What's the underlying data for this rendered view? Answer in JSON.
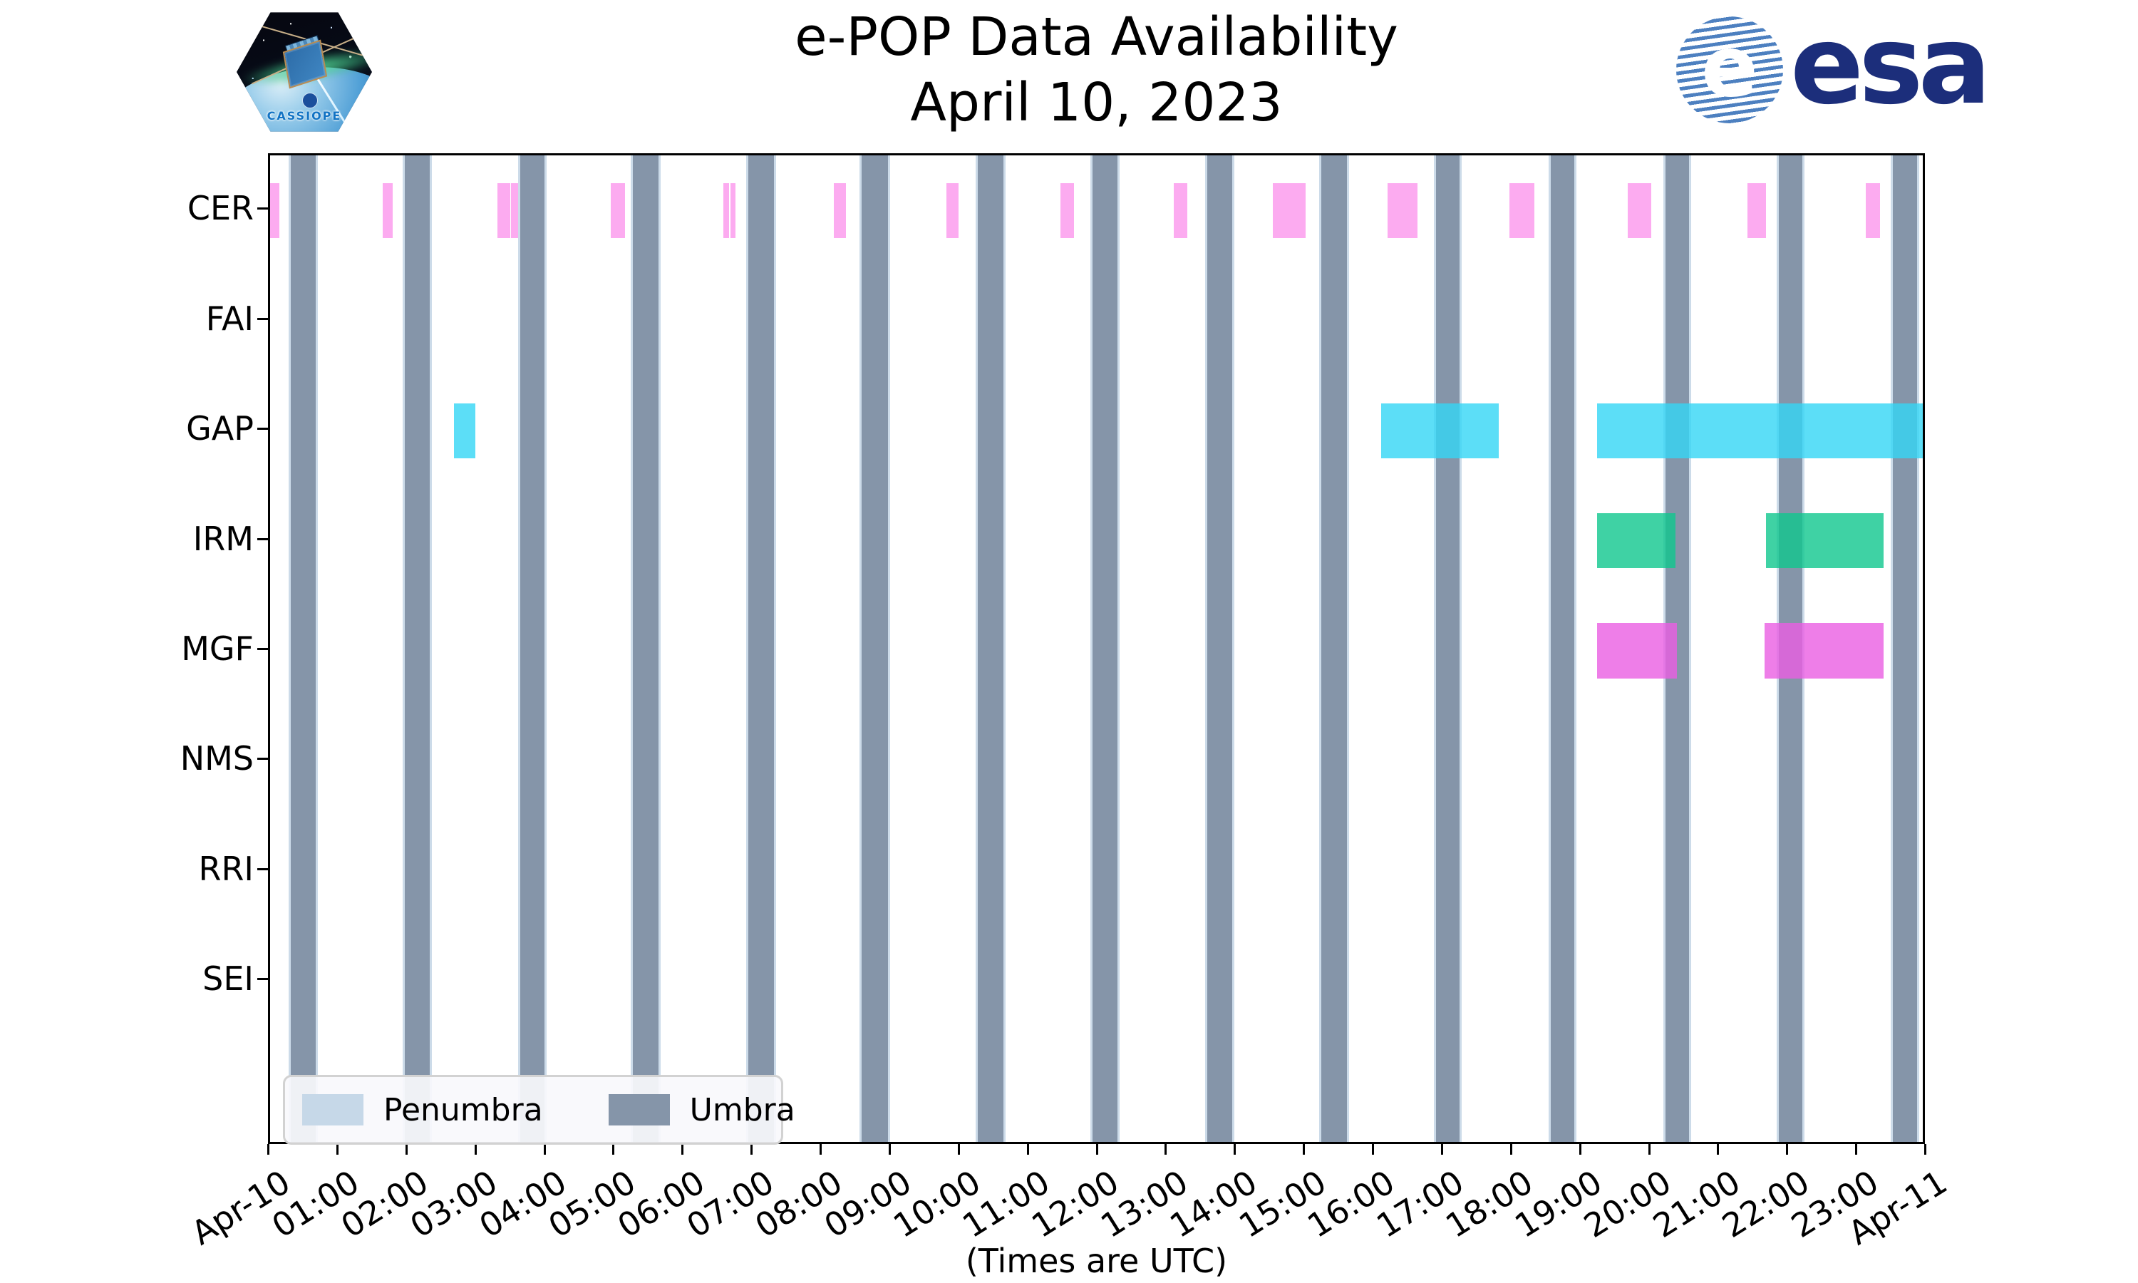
{
  "header": {
    "title_line1": "e-POP Data Availability",
    "title_line2": "April 10, 2023"
  },
  "branding": {
    "patch_text": "CASSIOPE",
    "esa_globe_letter": "e",
    "esa_wordmark": "esa"
  },
  "axes": {
    "xlabel": "(Times are UTC)",
    "x_range_hours": [
      0,
      24
    ],
    "x_ticks": [
      {
        "pos": 0,
        "label": "Apr-10"
      },
      {
        "pos": 1,
        "label": "01:00"
      },
      {
        "pos": 2,
        "label": "02:00"
      },
      {
        "pos": 3,
        "label": "03:00"
      },
      {
        "pos": 4,
        "label": "04:00"
      },
      {
        "pos": 5,
        "label": "05:00"
      },
      {
        "pos": 6,
        "label": "06:00"
      },
      {
        "pos": 7,
        "label": "07:00"
      },
      {
        "pos": 8,
        "label": "08:00"
      },
      {
        "pos": 9,
        "label": "09:00"
      },
      {
        "pos": 10,
        "label": "10:00"
      },
      {
        "pos": 11,
        "label": "11:00"
      },
      {
        "pos": 12,
        "label": "12:00"
      },
      {
        "pos": 13,
        "label": "13:00"
      },
      {
        "pos": 14,
        "label": "14:00"
      },
      {
        "pos": 15,
        "label": "15:00"
      },
      {
        "pos": 16,
        "label": "16:00"
      },
      {
        "pos": 17,
        "label": "17:00"
      },
      {
        "pos": 18,
        "label": "18:00"
      },
      {
        "pos": 19,
        "label": "19:00"
      },
      {
        "pos": 20,
        "label": "20:00"
      },
      {
        "pos": 21,
        "label": "21:00"
      },
      {
        "pos": 22,
        "label": "22:00"
      },
      {
        "pos": 23,
        "label": "23:00"
      },
      {
        "pos": 24,
        "label": "Apr-11"
      }
    ],
    "y_ticks": [
      "CER",
      "FAI",
      "GAP",
      "IRM",
      "MGF",
      "NMS",
      "RRI",
      "SEI"
    ]
  },
  "legend": {
    "items": [
      {
        "label": "Penumbra",
        "color": "#c6d8e8"
      },
      {
        "label": "Umbra",
        "color": "#8595a9"
      }
    ]
  },
  "colors": {
    "umbra": "#8595a9",
    "penumbra": "#ccdbe9",
    "axis": "#000000",
    "background": "#ffffff"
  },
  "chart_data": {
    "type": "timeline (broken-bar gantt of instrument data availability vs UTC time)",
    "title": "e-POP Data Availability",
    "subtitle": "April 10, 2023",
    "xlabel": "(Times are UTC)",
    "x_units": "hours UTC on 2023-04-10 (0 = Apr-10 00:00, 24 = Apr-11 00:00)",
    "xlim": [
      0,
      24
    ],
    "grid": false,
    "legend_position": "lower left",
    "shadow_intervals": {
      "umbra": [
        [
          0.33,
          0.63
        ],
        [
          1.98,
          2.28
        ],
        [
          3.65,
          3.94
        ],
        [
          5.29,
          5.59
        ],
        [
          6.96,
          7.27
        ],
        [
          8.6,
          8.92
        ],
        [
          10.28,
          10.59
        ],
        [
          11.94,
          12.24
        ],
        [
          13.6,
          13.9
        ],
        [
          15.26,
          15.57
        ],
        [
          16.92,
          17.2
        ],
        [
          18.58,
          18.86
        ],
        [
          20.24,
          20.52
        ],
        [
          21.88,
          22.16
        ],
        [
          23.54,
          23.82
        ]
      ],
      "penumbra_note": "thin light edges (~2 min) on both sides of each umbra band"
    },
    "series": [
      {
        "name": "CER",
        "color": "rgba(251,150,236,0.8)",
        "intervals": [
          [
            0.0,
            0.13
          ],
          [
            1.63,
            1.78
          ],
          [
            3.29,
            3.48
          ],
          [
            3.49,
            3.59
          ],
          [
            4.93,
            5.14
          ],
          [
            6.57,
            6.65
          ],
          [
            6.67,
            6.74
          ],
          [
            8.16,
            8.34
          ],
          [
            9.8,
            9.97
          ],
          [
            11.45,
            11.64
          ],
          [
            13.09,
            13.28
          ],
          [
            14.52,
            15.0
          ],
          [
            16.19,
            16.62
          ],
          [
            17.95,
            18.31
          ],
          [
            19.66,
            20.0
          ],
          [
            21.4,
            21.67
          ],
          [
            23.11,
            23.32
          ]
        ]
      },
      {
        "name": "FAI",
        "color": "rgba(120,120,120,0.8)",
        "intervals": []
      },
      {
        "name": "GAP",
        "color": "rgba(51,214,245,0.8)",
        "intervals": [
          [
            2.66,
            2.97
          ],
          [
            16.09,
            17.8
          ],
          [
            19.22,
            24.0
          ]
        ]
      },
      {
        "name": "IRM",
        "color": "rgba(15,199,141,0.8)",
        "intervals": [
          [
            19.22,
            20.36
          ],
          [
            21.67,
            23.37
          ]
        ]
      },
      {
        "name": "MGF",
        "color": "rgba(234,94,226,0.8)",
        "intervals": [
          [
            19.22,
            20.38
          ],
          [
            21.65,
            23.37
          ]
        ]
      },
      {
        "name": "NMS",
        "color": "rgba(120,120,120,0.8)",
        "intervals": []
      },
      {
        "name": "RRI",
        "color": "rgba(120,120,120,0.8)",
        "intervals": []
      },
      {
        "name": "SEI",
        "color": "rgba(120,120,120,0.8)",
        "intervals": []
      }
    ]
  }
}
